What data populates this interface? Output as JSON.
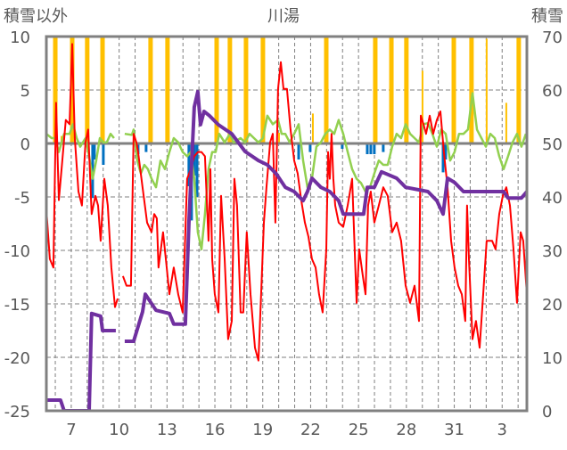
{
  "chart_data": {
    "type": "line",
    "title": "川湯",
    "ylabel_left": "積雪以外",
    "ylabel_right": "積雪",
    "ylim_left": [
      -25,
      10
    ],
    "ylim_right": [
      0,
      70
    ],
    "yticks_left": [
      10,
      5,
      0,
      -5,
      -10,
      -15,
      -20,
      -25
    ],
    "yticks_right": [
      70,
      60,
      50,
      40,
      30,
      20,
      10,
      0
    ],
    "xlim": [
      5.44,
      35.55
    ],
    "xticks": [
      {
        "day": 7,
        "label": "7"
      },
      {
        "day": 10,
        "label": "10"
      },
      {
        "day": 13,
        "label": "13"
      },
      {
        "day": 16,
        "label": "16"
      },
      {
        "day": 19,
        "label": "19"
      },
      {
        "day": 22,
        "label": "22"
      },
      {
        "day": 25,
        "label": "25"
      },
      {
        "day": 28,
        "label": "28"
      },
      {
        "day": 31,
        "label": "31"
      },
      {
        "day": 34,
        "label": "3"
      }
    ],
    "grid": true,
    "colors": {
      "temperature": "#ff0000",
      "second_temperature": "#92d050",
      "precipitation": "#ffc000",
      "negative_bars": "#0070c0",
      "snow_depth": "#7030a0"
    },
    "bars_precip": [
      [
        6.0,
        12
      ],
      [
        6.39,
        0.7
      ],
      [
        7.06,
        12
      ],
      [
        8.0,
        12
      ],
      [
        8.96,
        12
      ],
      [
        11.97,
        12
      ],
      [
        13.03,
        12
      ],
      [
        16.11,
        12
      ],
      [
        16.94,
        12
      ],
      [
        17.95,
        12
      ],
      [
        19.01,
        12
      ],
      [
        20.02,
        1
      ],
      [
        22.14,
        2.8
      ],
      [
        22.98,
        12
      ],
      [
        26.05,
        12
      ],
      [
        27.06,
        12
      ],
      [
        28.0,
        12
      ],
      [
        29.01,
        6.8
      ],
      [
        30.97,
        12
      ],
      [
        32.08,
        12
      ],
      [
        33.03,
        9.8
      ],
      [
        34.26,
        3.8
      ],
      [
        35.04,
        12
      ]
    ],
    "bars_negative": [
      [
        8.34,
        -5.1
      ],
      [
        8.45,
        -1.5
      ],
      [
        9.01,
        -2
      ],
      [
        11.19,
        -1
      ],
      [
        11.69,
        -0.8
      ],
      [
        14.37,
        -4
      ],
      [
        14.54,
        -7.2
      ],
      [
        14.71,
        -3
      ],
      [
        14.88,
        -5
      ],
      [
        21.25,
        -1.5
      ],
      [
        21.97,
        -0.8
      ],
      [
        23.98,
        -0.5
      ],
      [
        25.55,
        -1
      ],
      [
        25.77,
        -1
      ],
      [
        25.99,
        -1
      ],
      [
        26.55,
        -0.8
      ],
      [
        30.3,
        -2.7
      ],
      [
        30.46,
        -1.5
      ]
    ],
    "series_red": [
      [
        5.44,
        -6.2
      ],
      [
        5.66,
        -10.8
      ],
      [
        5.88,
        -11.6
      ],
      [
        6.05,
        3.8
      ],
      [
        6.22,
        -5.3
      ],
      [
        6.44,
        -1.6
      ],
      [
        6.66,
        2.2
      ],
      [
        6.89,
        1.8
      ],
      [
        7.06,
        9.3
      ],
      [
        7.22,
        0.5
      ],
      [
        7.45,
        -4.5
      ],
      [
        7.67,
        -5.8
      ],
      [
        7.89,
        0.1
      ],
      [
        8.06,
        1.3
      ],
      [
        8.28,
        -6.6
      ],
      [
        8.51,
        -4.9
      ],
      [
        8.68,
        -5.8
      ],
      [
        8.84,
        -9.1
      ],
      [
        9.07,
        -3.3
      ],
      [
        9.29,
        -5.8
      ],
      [
        9.51,
        -11.6
      ],
      [
        9.74,
        -15.3
      ],
      [
        9.91,
        -14.5
      ],
      null,
      [
        10.24,
        -12.4
      ],
      [
        10.46,
        -13.3
      ],
      [
        10.74,
        -13.3
      ],
      [
        10.91,
        0.9
      ],
      [
        11.08,
        0.1
      ],
      [
        11.19,
        -0.8
      ],
      [
        11.47,
        -4.1
      ],
      [
        11.75,
        -7.4
      ],
      [
        12.03,
        -8.3
      ],
      [
        12.2,
        -6.6
      ],
      [
        12.36,
        -7
      ],
      [
        12.47,
        -11.6
      ],
      [
        12.75,
        -8.3
      ],
      [
        12.98,
        -11.6
      ],
      [
        13.15,
        -14.1
      ],
      [
        13.42,
        -11.6
      ],
      [
        13.7,
        -14.1
      ],
      [
        13.98,
        -15.8
      ],
      [
        14.26,
        -3.3
      ],
      [
        14.49,
        -2.4
      ],
      [
        14.71,
        -1.2
      ],
      [
        14.93,
        -0.8
      ],
      [
        15.16,
        -0.8
      ],
      [
        15.38,
        -1.2
      ],
      [
        15.6,
        -9.1
      ],
      [
        15.72,
        -2.4
      ],
      [
        15.83,
        -10.8
      ],
      [
        15.99,
        -14.1
      ],
      [
        16.22,
        -15.8
      ],
      [
        16.39,
        -4.9
      ],
      [
        16.61,
        -10.8
      ],
      [
        16.83,
        -18.3
      ],
      [
        17.06,
        -16.6
      ],
      [
        17.22,
        -3.3
      ],
      [
        17.39,
        -5.8
      ],
      [
        17.61,
        -15.8
      ],
      [
        17.78,
        -15.8
      ],
      [
        18.0,
        -8.3
      ],
      [
        18.23,
        -14.1
      ],
      [
        18.51,
        -19.1
      ],
      [
        18.73,
        -20.3
      ],
      [
        18.9,
        -14.1
      ],
      [
        19.07,
        -7.4
      ],
      [
        19.23,
        -4.1
      ],
      [
        19.46,
        0.1
      ],
      [
        19.63,
        0.9
      ],
      [
        19.79,
        -7.4
      ],
      [
        19.96,
        5.1
      ],
      [
        20.13,
        7.6
      ],
      [
        20.3,
        5.1
      ],
      [
        20.52,
        5.1
      ],
      [
        20.74,
        1.3
      ],
      [
        20.97,
        -1.6
      ],
      [
        21.19,
        -2.8
      ],
      [
        21.41,
        -5.3
      ],
      [
        21.64,
        -7.4
      ],
      [
        21.86,
        -8.7
      ],
      [
        22.08,
        -10.8
      ],
      [
        22.31,
        -11.6
      ],
      [
        22.53,
        -14.1
      ],
      [
        22.75,
        -15.8
      ],
      [
        22.98,
        -9.9
      ],
      [
        23.09,
        -0.8
      ],
      [
        23.2,
        -3.3
      ],
      [
        23.31,
        0.9
      ],
      [
        23.42,
        -3.3
      ],
      [
        23.54,
        -5.8
      ],
      [
        23.76,
        -7.4
      ],
      [
        24.04,
        -7.8
      ],
      [
        24.32,
        -5.8
      ],
      [
        24.6,
        -3.3
      ],
      [
        24.88,
        -14.9
      ],
      [
        25.04,
        -9.9
      ],
      [
        25.27,
        -12.4
      ],
      [
        25.44,
        -14.1
      ],
      [
        25.6,
        -5.8
      ],
      [
        25.77,
        -4.5
      ],
      [
        25.99,
        -7.4
      ],
      [
        26.27,
        -5.8
      ],
      [
        26.55,
        -4.1
      ],
      [
        26.83,
        -4.9
      ],
      [
        27.11,
        -8.3
      ],
      [
        27.39,
        -7.4
      ],
      [
        27.67,
        -9.1
      ],
      [
        27.95,
        -13.3
      ],
      [
        28.23,
        -14.9
      ],
      [
        28.51,
        -13.3
      ],
      [
        28.79,
        -16.6
      ],
      [
        28.9,
        2.6
      ],
      [
        29.07,
        1.8
      ],
      [
        29.23,
        0.9
      ],
      [
        29.46,
        2.6
      ],
      [
        29.68,
        0.9
      ],
      [
        29.91,
        2.2
      ],
      [
        30.13,
        3.0
      ],
      [
        30.35,
        -0.8
      ],
      [
        30.58,
        -4.1
      ],
      [
        30.8,
        -9.1
      ],
      [
        31.02,
        -11.6
      ],
      [
        31.25,
        -13.3
      ],
      [
        31.47,
        -14.1
      ],
      [
        31.69,
        -16.6
      ],
      [
        31.8,
        -5.8
      ],
      [
        31.92,
        -10.8
      ],
      [
        32.14,
        -18.3
      ],
      [
        32.36,
        -16.6
      ],
      [
        32.59,
        -19.1
      ],
      [
        32.81,
        -14.1
      ],
      [
        33.03,
        -9.1
      ],
      [
        33.37,
        -9.1
      ],
      [
        33.59,
        -9.9
      ],
      [
        33.82,
        -6.6
      ],
      [
        34.04,
        -4.9
      ],
      [
        34.26,
        -4.1
      ],
      [
        34.49,
        -5.8
      ],
      [
        34.71,
        -9.9
      ],
      [
        34.93,
        -14.9
      ],
      [
        35.16,
        -8.3
      ],
      [
        35.32,
        -9.1
      ],
      [
        35.55,
        -14.1
      ]
    ],
    "series_green": [
      [
        5.44,
        0.9
      ],
      [
        5.77,
        0.5
      ],
      [
        5.99,
        0.5
      ],
      [
        6.22,
        -0.8
      ],
      [
        6.55,
        0.9
      ],
      [
        6.89,
        0.9
      ],
      [
        7.11,
        1.8
      ],
      [
        7.34,
        0.5
      ],
      [
        7.56,
        -0.3
      ],
      [
        7.89,
        0.5
      ],
      [
        8.12,
        -1.2
      ],
      [
        8.34,
        -3.3
      ],
      [
        8.56,
        -1.6
      ],
      [
        8.79,
        0.5
      ],
      [
        9.01,
        0.1
      ],
      [
        9.23,
        0.1
      ],
      [
        9.46,
        0.9
      ],
      [
        9.68,
        0.5
      ],
      null,
      [
        10.35,
        0.9
      ],
      [
        10.8,
        0.8
      ],
      [
        10.91,
        1.3
      ],
      [
        11.13,
        -1.6
      ],
      [
        11.36,
        -2.8
      ],
      [
        11.58,
        -2
      ],
      [
        11.8,
        -2.4
      ],
      [
        12.03,
        -3.3
      ],
      [
        12.31,
        -4.1
      ],
      [
        12.59,
        -1.6
      ],
      [
        12.87,
        -2.4
      ],
      [
        13.15,
        -0.8
      ],
      [
        13.42,
        0.5
      ],
      [
        13.7,
        0.1
      ],
      [
        13.98,
        -0.8
      ],
      [
        14.26,
        -1.2
      ],
      [
        14.49,
        -0.8
      ],
      [
        14.71,
        -3.3
      ],
      [
        14.93,
        -8.3
      ],
      [
        15.16,
        -9.9
      ],
      [
        15.38,
        -6.6
      ],
      [
        15.6,
        -2.4
      ],
      [
        15.83,
        -0.8
      ],
      [
        16.05,
        -0.8
      ],
      [
        16.27,
        0.9
      ],
      [
        16.61,
        0.1
      ],
      [
        16.94,
        0.9
      ],
      [
        17.17,
        0.1
      ],
      [
        17.61,
        0.5
      ],
      [
        17.89,
        0.1
      ],
      [
        18.17,
        0.9
      ],
      [
        18.45,
        0.5
      ],
      [
        18.73,
        0.1
      ],
      [
        19.01,
        0.5
      ],
      [
        19.29,
        2.6
      ],
      [
        19.63,
        1.8
      ],
      [
        19.96,
        2.2
      ],
      [
        20.18,
        0.9
      ],
      [
        20.41,
        0.9
      ],
      [
        20.69,
        0.1
      ],
      [
        20.97,
        0.9
      ],
      [
        21.25,
        1.8
      ],
      [
        21.53,
        -1.6
      ],
      [
        21.8,
        -4.1
      ],
      [
        22.08,
        -3.3
      ],
      [
        22.36,
        -0.3
      ],
      [
        22.64,
        0.1
      ],
      [
        22.92,
        0.9
      ],
      [
        23.2,
        1.3
      ],
      [
        23.48,
        0.9
      ],
      [
        23.76,
        2.2
      ],
      [
        24.04,
        0.9
      ],
      [
        24.32,
        -0.8
      ],
      [
        24.6,
        -2.4
      ],
      [
        24.88,
        -3.3
      ],
      [
        25.16,
        -3.7
      ],
      [
        25.44,
        -4.5
      ],
      [
        25.72,
        -4.1
      ],
      [
        25.99,
        -2.8
      ],
      [
        26.27,
        -1.6
      ],
      [
        26.55,
        -2
      ],
      [
        26.83,
        -2
      ],
      [
        27.11,
        -0.3
      ],
      [
        27.39,
        0.9
      ],
      [
        27.67,
        0.5
      ],
      [
        27.95,
        1.8
      ],
      [
        28.23,
        0.9
      ],
      [
        28.51,
        0.5
      ],
      [
        28.79,
        0.1
      ],
      [
        29.07,
        1.8
      ],
      [
        29.35,
        1.9
      ],
      [
        29.63,
        0.9
      ],
      [
        29.91,
        -0.3
      ],
      [
        30.18,
        1.3
      ],
      [
        30.46,
        0.9
      ],
      [
        30.74,
        -1.6
      ],
      [
        31.02,
        -0.8
      ],
      [
        31.3,
        0.9
      ],
      [
        31.58,
        0.9
      ],
      [
        31.86,
        1.3
      ],
      [
        32.14,
        4.7
      ],
      [
        32.42,
        1.3
      ],
      [
        32.7,
        0.5
      ],
      [
        32.98,
        -0.3
      ],
      [
        33.26,
        0.9
      ],
      [
        33.54,
        0.5
      ],
      [
        33.82,
        -1.2
      ],
      [
        34.09,
        -2.4
      ],
      [
        34.37,
        -1.2
      ],
      [
        34.65,
        0.1
      ],
      [
        34.93,
        0.9
      ],
      [
        35.21,
        -0.3
      ],
      [
        35.49,
        0.9
      ]
    ],
    "series_snow_depth": [
      [
        5.44,
        2
      ],
      [
        6.33,
        2
      ],
      [
        6.55,
        0
      ],
      [
        8.12,
        0
      ],
      [
        8.28,
        18.2
      ],
      [
        8.84,
        17.7
      ],
      [
        8.96,
        15
      ],
      [
        9.79,
        15
      ],
      null,
      [
        10.35,
        13
      ],
      [
        10.91,
        13
      ],
      [
        11.47,
        18.5
      ],
      [
        11.64,
        21.8
      ],
      [
        12.31,
        18.8
      ],
      [
        13.15,
        18.2
      ],
      [
        13.42,
        16.2
      ],
      [
        14.15,
        16.2
      ],
      [
        14.37,
        35.2
      ],
      [
        14.71,
        56.8
      ],
      [
        14.93,
        59.7
      ],
      [
        15.1,
        53.5
      ],
      [
        15.32,
        56
      ],
      [
        15.66,
        55.2
      ],
      [
        16.22,
        53.5
      ],
      [
        17.06,
        51.8
      ],
      [
        17.89,
        48.5
      ],
      [
        18.73,
        46.8
      ],
      [
        19.29,
        46
      ],
      [
        19.85,
        44.3
      ],
      [
        20.41,
        41.8
      ],
      [
        20.97,
        41
      ],
      [
        21.53,
        39.3
      ],
      [
        21.8,
        41
      ],
      [
        22.08,
        43.5
      ],
      [
        22.64,
        41.8
      ],
      [
        23.2,
        41
      ],
      [
        23.76,
        39.3
      ],
      [
        24.04,
        36.8
      ],
      [
        25.32,
        36.8
      ],
      [
        25.55,
        41.8
      ],
      [
        25.99,
        41.8
      ],
      [
        26.44,
        44.7
      ],
      [
        27.39,
        43.5
      ],
      [
        27.95,
        41.8
      ],
      [
        29.35,
        41
      ],
      [
        29.91,
        39.3
      ],
      [
        30.3,
        36.8
      ],
      [
        30.58,
        43.5
      ],
      [
        31.02,
        42.7
      ],
      [
        31.58,
        41
      ],
      [
        34.09,
        41
      ],
      [
        34.37,
        39.8
      ],
      [
        35.21,
        39.8
      ],
      [
        35.55,
        41
      ]
    ]
  }
}
